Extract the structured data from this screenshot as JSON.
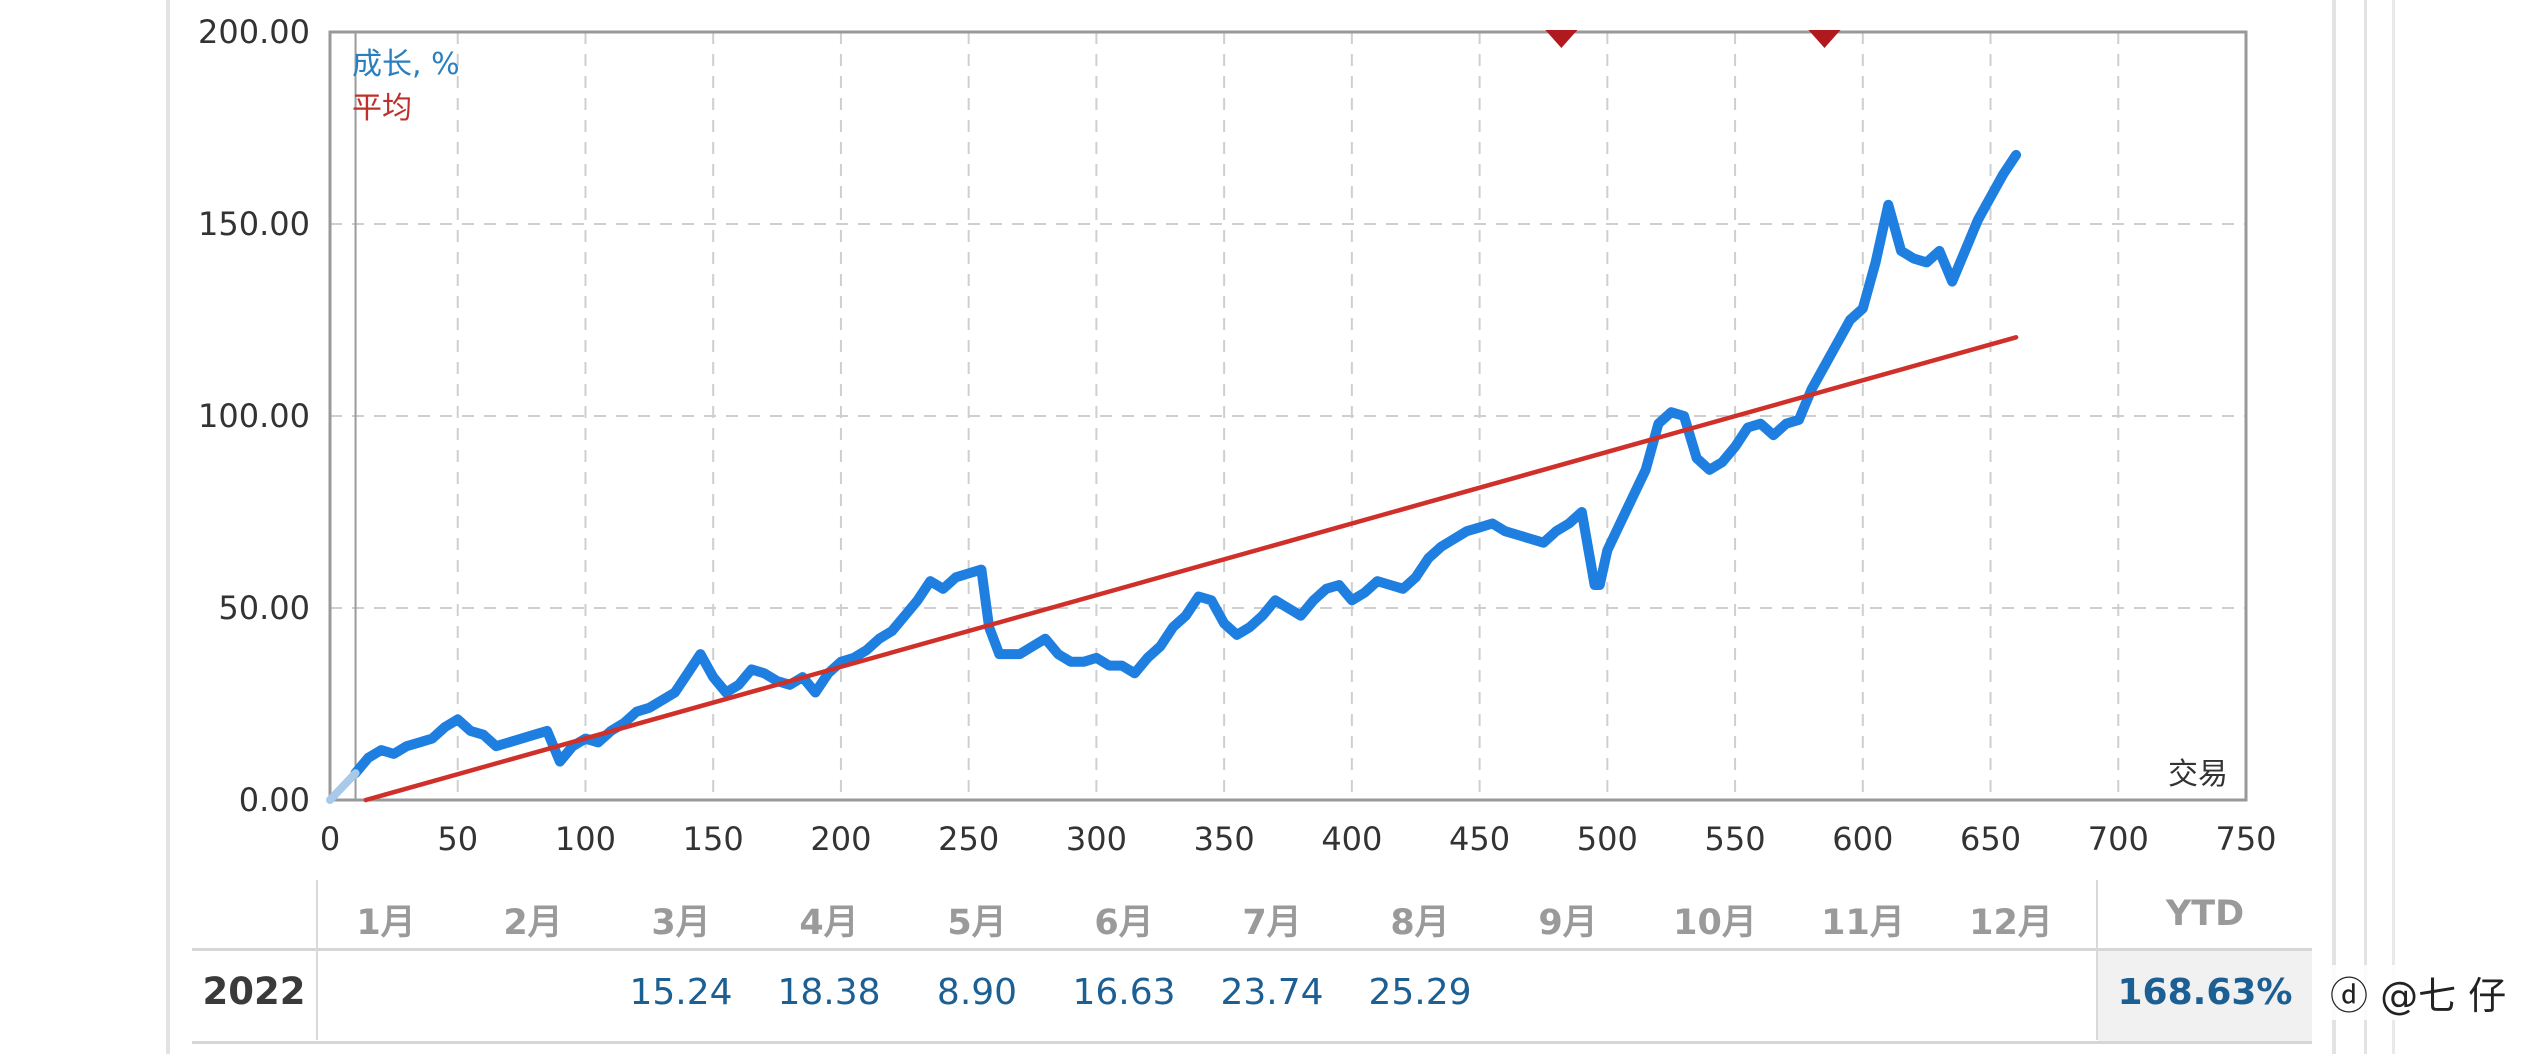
{
  "chart_data": {
    "type": "line",
    "legend": [
      {
        "label": "成长, %",
        "color": "#2a7fc0"
      },
      {
        "label": "平均",
        "color": "#c0302a"
      }
    ],
    "corner_label": "交易",
    "xlim": [
      0,
      750
    ],
    "ylim": [
      0,
      200
    ],
    "xticks": [
      0,
      50,
      100,
      150,
      200,
      250,
      300,
      350,
      400,
      450,
      500,
      550,
      600,
      650,
      700,
      750
    ],
    "yticks": [
      "0.00",
      "50.00",
      "100.00",
      "150.00",
      "200.00"
    ],
    "grid": true,
    "markers_top_x": [
      482,
      585
    ],
    "series": [
      {
        "name": "成长, %",
        "color": "#1e7fe0",
        "x": [
          10,
          15,
          20,
          25,
          30,
          35,
          40,
          45,
          50,
          55,
          60,
          65,
          70,
          75,
          80,
          85,
          90,
          95,
          100,
          105,
          110,
          115,
          120,
          125,
          130,
          135,
          140,
          145,
          150,
          155,
          160,
          165,
          170,
          175,
          180,
          185,
          190,
          195,
          200,
          205,
          210,
          215,
          220,
          225,
          230,
          235,
          240,
          245,
          250,
          255,
          258,
          262,
          270,
          275,
          280,
          285,
          290,
          295,
          300,
          305,
          310,
          315,
          320,
          325,
          330,
          335,
          340,
          345,
          350,
          355,
          360,
          365,
          370,
          375,
          380,
          385,
          390,
          395,
          400,
          405,
          410,
          415,
          420,
          425,
          430,
          435,
          440,
          445,
          450,
          455,
          460,
          465,
          470,
          475,
          480,
          485,
          490,
          495,
          497,
          500,
          505,
          510,
          515,
          520,
          525,
          530,
          535,
          540,
          545,
          550,
          555,
          560,
          565,
          570,
          575,
          580,
          585,
          590,
          595,
          600,
          605,
          610,
          615,
          620,
          625,
          630,
          635,
          640,
          645,
          650,
          655,
          660
        ],
        "values": [
          7,
          11,
          13,
          12,
          14,
          15,
          16,
          19,
          21,
          18,
          17,
          14,
          15,
          16,
          17,
          18,
          10,
          14,
          16,
          15,
          18,
          20,
          23,
          24,
          26,
          28,
          33,
          38,
          32,
          28,
          30,
          34,
          33,
          31,
          30,
          32,
          28,
          33,
          36,
          37,
          39,
          42,
          44,
          48,
          52,
          57,
          55,
          58,
          59,
          60,
          45,
          38,
          38,
          40,
          42,
          38,
          36,
          36,
          37,
          35,
          35,
          33,
          37,
          40,
          45,
          48,
          53,
          52,
          46,
          43,
          45,
          48,
          52,
          50,
          48,
          52,
          55,
          56,
          52,
          54,
          57,
          56,
          55,
          58,
          63,
          66,
          68,
          70,
          71,
          72,
          70,
          69,
          68,
          67,
          70,
          72,
          75,
          56,
          56,
          65,
          72,
          79,
          86,
          98,
          101,
          100,
          89,
          86,
          88,
          92,
          97,
          98,
          95,
          98,
          99,
          107,
          113,
          119,
          125,
          128,
          140,
          155,
          143,
          141,
          140,
          143,
          135,
          143,
          151,
          157,
          163,
          168
        ]
      },
      {
        "name": "平均",
        "color": "#d0302a",
        "x": [
          14,
          660
        ],
        "values": [
          0,
          120.5
        ]
      }
    ]
  },
  "table": {
    "months": [
      "1月",
      "2月",
      "3月",
      "4月",
      "5月",
      "6月",
      "7月",
      "8月",
      "9月",
      "10月",
      "11月",
      "12月"
    ],
    "ytd_header": "YTD",
    "rows": [
      {
        "year": "2022",
        "values": [
          "",
          "",
          "15.24",
          "18.38",
          "8.90",
          "16.63",
          "23.74",
          "25.29",
          "",
          "",
          "",
          ""
        ],
        "ytd": "168.63%"
      }
    ]
  },
  "watermark": "ⓓ @七 仔"
}
